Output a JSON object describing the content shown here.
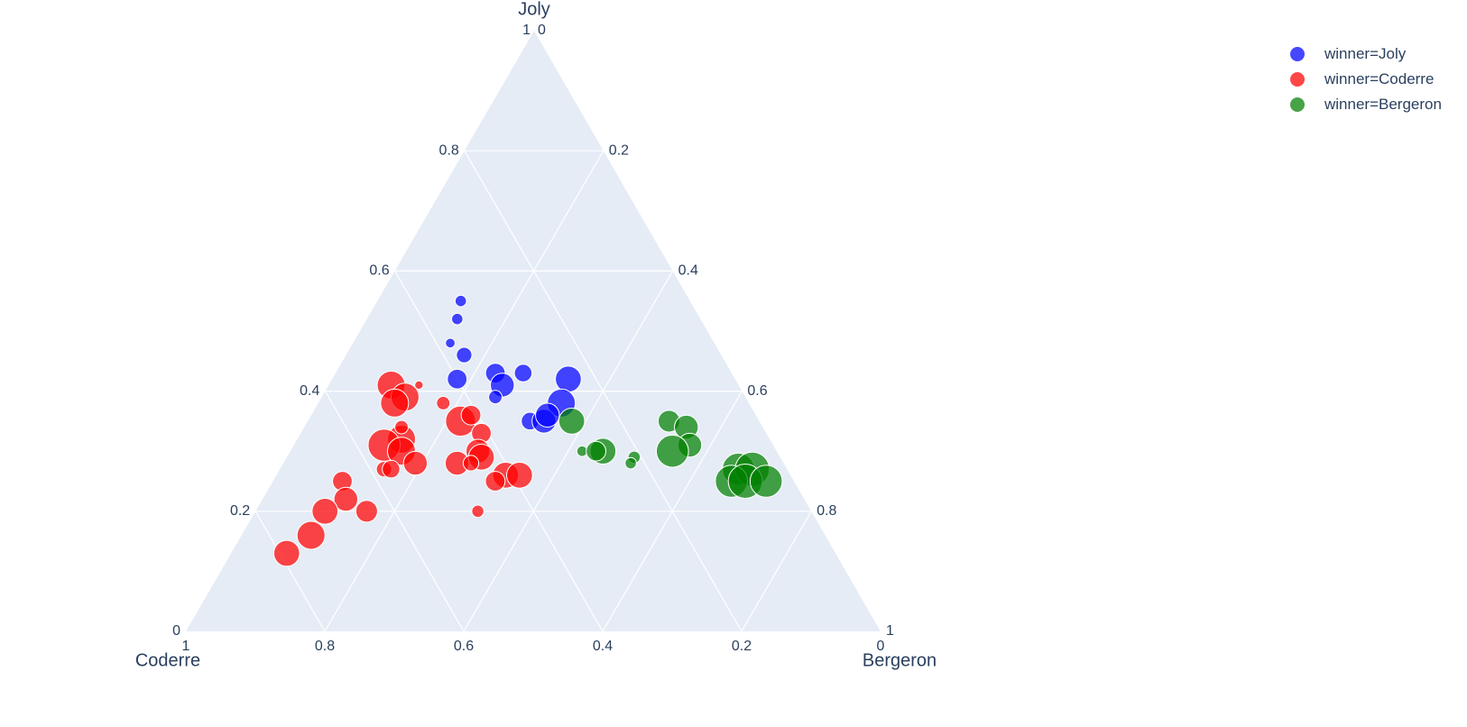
{
  "chart_data": {
    "type": "scatter",
    "subtype": "ternary",
    "axes": {
      "a": {
        "title": "Joly",
        "ticks": [
          "0.2",
          "0.4",
          "0.6",
          "0.8",
          "1"
        ]
      },
      "b": {
        "title": "Coderre",
        "ticks": [
          "0.2",
          "0.4",
          "0.6",
          "0.8",
          "1"
        ]
      },
      "c": {
        "title": "Bergeron",
        "ticks": [
          "0.2",
          "0.4",
          "0.6",
          "0.8",
          "1"
        ]
      },
      "corner_zero_labels": [
        "0",
        "0",
        "0"
      ]
    },
    "grid": true,
    "legend_placement": "top-right",
    "series": [
      {
        "name": "winner=Joly",
        "color": "#0000ff",
        "points": [
          {
            "a": 0.55,
            "b": 0.33,
            "c": 0.12,
            "s": 1
          },
          {
            "a": 0.52,
            "b": 0.35,
            "c": 0.13,
            "s": 1
          },
          {
            "a": 0.48,
            "b": 0.38,
            "c": 0.14,
            "s": 0.6
          },
          {
            "a": 0.46,
            "b": 0.37,
            "c": 0.17,
            "s": 2
          },
          {
            "a": 0.42,
            "b": 0.4,
            "c": 0.18,
            "s": 3
          },
          {
            "a": 0.43,
            "b": 0.34,
            "c": 0.23,
            "s": 3
          },
          {
            "a": 0.41,
            "b": 0.34,
            "c": 0.25,
            "s": 4
          },
          {
            "a": 0.39,
            "b": 0.36,
            "c": 0.25,
            "s": 1.5
          },
          {
            "a": 0.43,
            "b": 0.3,
            "c": 0.27,
            "s": 2.5
          },
          {
            "a": 0.42,
            "b": 0.24,
            "c": 0.34,
            "s": 4.5
          },
          {
            "a": 0.38,
            "b": 0.27,
            "c": 0.35,
            "s": 5
          },
          {
            "a": 0.35,
            "b": 0.33,
            "c": 0.32,
            "s": 2.5
          },
          {
            "a": 0.35,
            "b": 0.31,
            "c": 0.34,
            "s": 4
          },
          {
            "a": 0.36,
            "b": 0.3,
            "c": 0.34,
            "s": 4
          }
        ]
      },
      {
        "name": "winner=Coderre",
        "color": "#ff0000",
        "points": [
          {
            "a": 0.41,
            "b": 0.5,
            "c": 0.09,
            "s": 5
          },
          {
            "a": 0.39,
            "b": 0.49,
            "c": 0.12,
            "s": 5
          },
          {
            "a": 0.38,
            "b": 0.51,
            "c": 0.11,
            "s": 5
          },
          {
            "a": 0.41,
            "b": 0.46,
            "c": 0.13,
            "s": 0.3
          },
          {
            "a": 0.38,
            "b": 0.44,
            "c": 0.18,
            "s": 1.5
          },
          {
            "a": 0.35,
            "b": 0.43,
            "c": 0.22,
            "s": 5.5
          },
          {
            "a": 0.36,
            "b": 0.41,
            "c": 0.23,
            "s": 3
          },
          {
            "a": 0.33,
            "b": 0.41,
            "c": 0.26,
            "s": 3
          },
          {
            "a": 0.32,
            "b": 0.53,
            "c": 0.15,
            "s": 5
          },
          {
            "a": 0.34,
            "b": 0.52,
            "c": 0.14,
            "s": 1.5
          },
          {
            "a": 0.31,
            "b": 0.56,
            "c": 0.13,
            "s": 6
          },
          {
            "a": 0.3,
            "b": 0.54,
            "c": 0.16,
            "s": 5
          },
          {
            "a": 0.28,
            "b": 0.53,
            "c": 0.19,
            "s": 4
          },
          {
            "a": 0.27,
            "b": 0.58,
            "c": 0.15,
            "s": 2
          },
          {
            "a": 0.27,
            "b": 0.57,
            "c": 0.16,
            "s": 2.5
          },
          {
            "a": 0.3,
            "b": 0.43,
            "c": 0.27,
            "s": 4
          },
          {
            "a": 0.29,
            "b": 0.43,
            "c": 0.28,
            "s": 4.5
          },
          {
            "a": 0.28,
            "b": 0.47,
            "c": 0.25,
            "s": 4
          },
          {
            "a": 0.28,
            "b": 0.45,
            "c": 0.27,
            "s": 2
          },
          {
            "a": 0.26,
            "b": 0.41,
            "c": 0.33,
            "s": 4.5
          },
          {
            "a": 0.26,
            "b": 0.39,
            "c": 0.35,
            "s": 4.5
          },
          {
            "a": 0.25,
            "b": 0.43,
            "c": 0.32,
            "s": 3
          },
          {
            "a": 0.25,
            "b": 0.65,
            "c": 0.1,
            "s": 3
          },
          {
            "a": 0.22,
            "b": 0.66,
            "c": 0.12,
            "s": 4
          },
          {
            "a": 0.2,
            "b": 0.64,
            "c": 0.16,
            "s": 3.5
          },
          {
            "a": 0.2,
            "b": 0.7,
            "c": 0.1,
            "s": 4.5
          },
          {
            "a": 0.2,
            "b": 0.48,
            "c": 0.32,
            "s": 1.2
          },
          {
            "a": 0.16,
            "b": 0.74,
            "c": 0.1,
            "s": 5
          },
          {
            "a": 0.13,
            "b": 0.79,
            "c": 0.08,
            "s": 4.5
          }
        ]
      },
      {
        "name": "winner=Bergeron",
        "color": "#008000",
        "points": [
          {
            "a": 0.35,
            "b": 0.27,
            "c": 0.38,
            "s": 4.5
          },
          {
            "a": 0.35,
            "b": 0.13,
            "c": 0.52,
            "s": 3.5
          },
          {
            "a": 0.34,
            "b": 0.11,
            "c": 0.55,
            "s": 4
          },
          {
            "a": 0.31,
            "b": 0.12,
            "c": 0.57,
            "s": 4
          },
          {
            "a": 0.3,
            "b": 0.28,
            "c": 0.42,
            "s": 0.8
          },
          {
            "a": 0.3,
            "b": 0.25,
            "c": 0.45,
            "s": 4.5
          },
          {
            "a": 0.3,
            "b": 0.26,
            "c": 0.44,
            "s": 3
          },
          {
            "a": 0.29,
            "b": 0.21,
            "c": 0.5,
            "s": 1.2
          },
          {
            "a": 0.28,
            "b": 0.22,
            "c": 0.5,
            "s": 1
          },
          {
            "a": 0.3,
            "b": 0.15,
            "c": 0.55,
            "s": 6
          },
          {
            "a": 0.27,
            "b": 0.07,
            "c": 0.66,
            "s": 6
          },
          {
            "a": 0.27,
            "b": 0.05,
            "c": 0.68,
            "s": 6.5
          },
          {
            "a": 0.25,
            "b": 0.09,
            "c": 0.66,
            "s": 6
          },
          {
            "a": 0.25,
            "b": 0.07,
            "c": 0.68,
            "s": 6.5
          },
          {
            "a": 0.25,
            "b": 0.04,
            "c": 0.71,
            "s": 6
          }
        ]
      }
    ]
  }
}
